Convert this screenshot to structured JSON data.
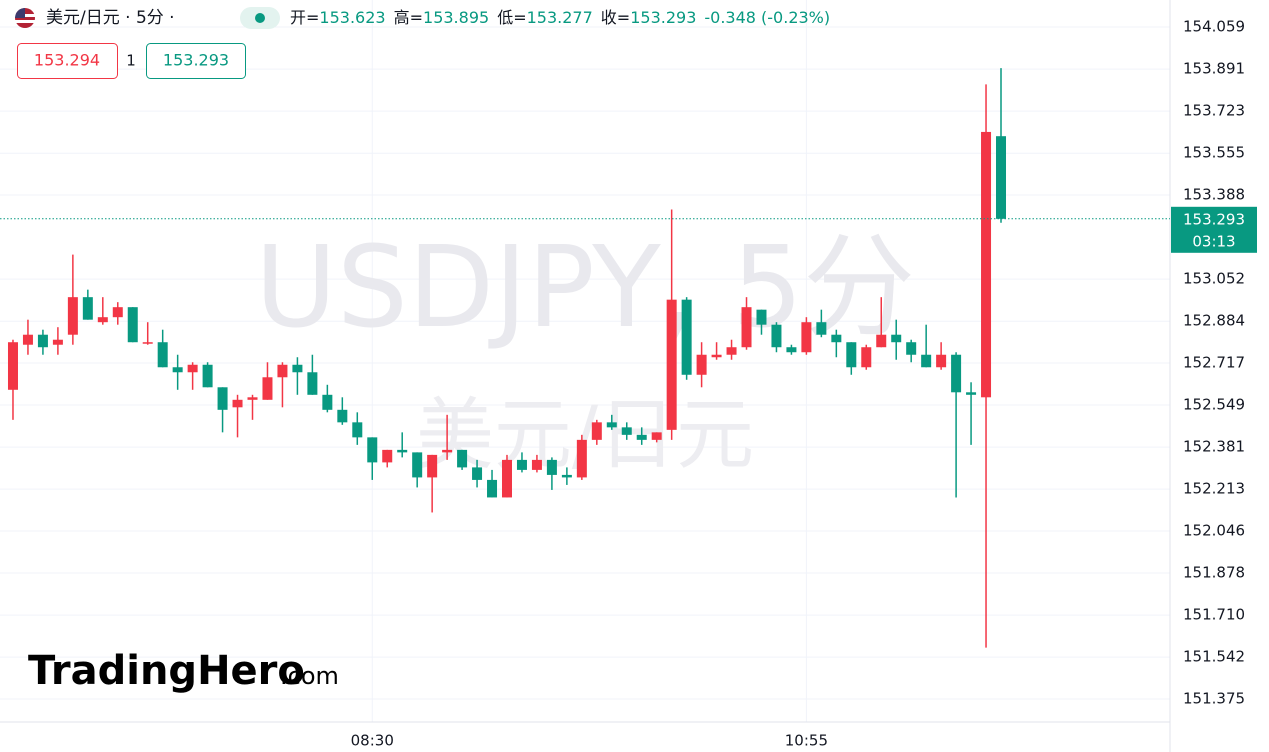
{
  "header": {
    "symbol": "美元/日元 · 5分 ·",
    "ohlc": [
      {
        "label": "开=",
        "value": "153.623"
      },
      {
        "label": "高=",
        "value": "153.895"
      },
      {
        "label": "低=",
        "value": "153.277"
      },
      {
        "label": "收=",
        "value": "153.293"
      }
    ],
    "change": "-0.348 (-0.23%)"
  },
  "quote": {
    "sell": "153.294",
    "spread": "1",
    "buy": "153.293"
  },
  "watermark": {
    "line1": "USDJPY, 5分",
    "line2": "美元/日元"
  },
  "logo": {
    "brand": "TradingHero",
    "suffix": ".com"
  },
  "chart_data": {
    "type": "candlestick",
    "categories": [
      null,
      null,
      null,
      null,
      null,
      null,
      null,
      null,
      null,
      null,
      null,
      null,
      null,
      null,
      null,
      null,
      null,
      null,
      null,
      null,
      null,
      null,
      null,
      null,
      "08:30",
      null,
      null,
      null,
      null,
      null,
      null,
      null,
      null,
      null,
      null,
      null,
      null,
      null,
      null,
      null,
      null,
      null,
      null,
      null,
      null,
      null,
      null,
      null,
      null,
      null,
      null,
      null,
      null,
      "10:55",
      null,
      null,
      null,
      null,
      null,
      null,
      null,
      null,
      null,
      null,
      null,
      null,
      null
    ],
    "open": [
      152.61,
      152.79,
      152.83,
      152.79,
      152.83,
      152.98,
      152.88,
      152.9,
      152.94,
      152.8,
      152.8,
      152.7,
      152.68,
      152.71,
      152.62,
      152.54,
      152.57,
      152.57,
      152.66,
      152.71,
      152.68,
      152.59,
      152.53,
      152.48,
      152.42,
      152.32,
      152.37,
      152.36,
      152.26,
      152.36,
      152.37,
      152.3,
      152.25,
      152.18,
      152.33,
      152.29,
      152.33,
      152.27,
      152.26,
      152.41,
      152.48,
      152.46,
      152.43,
      152.41,
      152.45,
      152.97,
      152.67,
      152.74,
      152.75,
      152.78,
      152.93,
      152.87,
      152.78,
      152.76,
      152.88,
      152.83,
      152.8,
      152.7,
      152.78,
      152.83,
      152.8,
      152.75,
      152.7,
      152.75,
      152.6,
      152.58,
      153.623
    ],
    "high": [
      152.81,
      152.89,
      152.85,
      152.86,
      153.15,
      153.01,
      152.98,
      152.96,
      152.94,
      152.88,
      152.85,
      152.75,
      152.72,
      152.72,
      152.62,
      152.59,
      152.59,
      152.72,
      152.72,
      152.74,
      152.75,
      152.63,
      152.58,
      152.52,
      152.42,
      152.37,
      152.44,
      152.36,
      152.35,
      152.51,
      152.37,
      152.33,
      152.29,
      152.35,
      152.36,
      152.35,
      152.34,
      152.3,
      152.43,
      152.49,
      152.51,
      152.48,
      152.46,
      152.44,
      153.33,
      152.98,
      152.8,
      152.8,
      152.81,
      152.98,
      152.93,
      152.88,
      152.79,
      152.9,
      152.93,
      152.85,
      152.8,
      152.79,
      152.98,
      152.89,
      152.81,
      152.87,
      152.8,
      152.76,
      152.64,
      153.83,
      153.895
    ],
    "low": [
      152.49,
      152.75,
      152.75,
      152.75,
      152.79,
      152.89,
      152.87,
      152.87,
      152.8,
      152.79,
      152.7,
      152.61,
      152.61,
      152.62,
      152.44,
      152.42,
      152.49,
      152.57,
      152.54,
      152.59,
      152.59,
      152.52,
      152.47,
      152.39,
      152.25,
      152.3,
      152.34,
      152.22,
      152.12,
      152.33,
      152.29,
      152.22,
      152.18,
      152.18,
      152.28,
      152.28,
      152.21,
      152.23,
      152.25,
      152.39,
      152.45,
      152.41,
      152.39,
      152.4,
      152.41,
      152.65,
      152.62,
      152.73,
      152.73,
      152.77,
      152.83,
      152.76,
      152.75,
      152.75,
      152.82,
      152.74,
      152.67,
      152.69,
      152.78,
      152.73,
      152.72,
      152.7,
      152.69,
      152.18,
      152.39,
      151.58,
      153.277
    ],
    "close": [
      152.8,
      152.83,
      152.78,
      152.81,
      152.98,
      152.89,
      152.9,
      152.94,
      152.8,
      152.8,
      152.7,
      152.68,
      152.71,
      152.62,
      152.53,
      152.57,
      152.58,
      152.66,
      152.71,
      152.68,
      152.59,
      152.53,
      152.48,
      152.42,
      152.32,
      152.37,
      152.36,
      152.26,
      152.35,
      152.37,
      152.3,
      152.25,
      152.18,
      152.33,
      152.29,
      152.33,
      152.27,
      152.26,
      152.41,
      152.48,
      152.46,
      152.43,
      152.41,
      152.44,
      152.97,
      152.67,
      152.75,
      152.75,
      152.78,
      152.94,
      152.87,
      152.78,
      152.76,
      152.88,
      152.83,
      152.8,
      152.7,
      152.78,
      152.83,
      152.8,
      152.75,
      152.7,
      152.75,
      152.6,
      152.59,
      153.64,
      153.293
    ],
    "up_color": "#f23645",
    "down_color": "#089981",
    "ylim": [
      151.283,
      154.167
    ],
    "yticks": [
      154.059,
      153.891,
      153.723,
      153.555,
      153.388,
      153.052,
      152.884,
      152.717,
      152.549,
      152.381,
      152.213,
      152.046,
      151.878,
      {
        "value": 151.71,
        "label": "151.710"
      },
      151.542,
      151.375
    ],
    "grid": true,
    "last_price": 153.293,
    "countdown": "03:13"
  }
}
